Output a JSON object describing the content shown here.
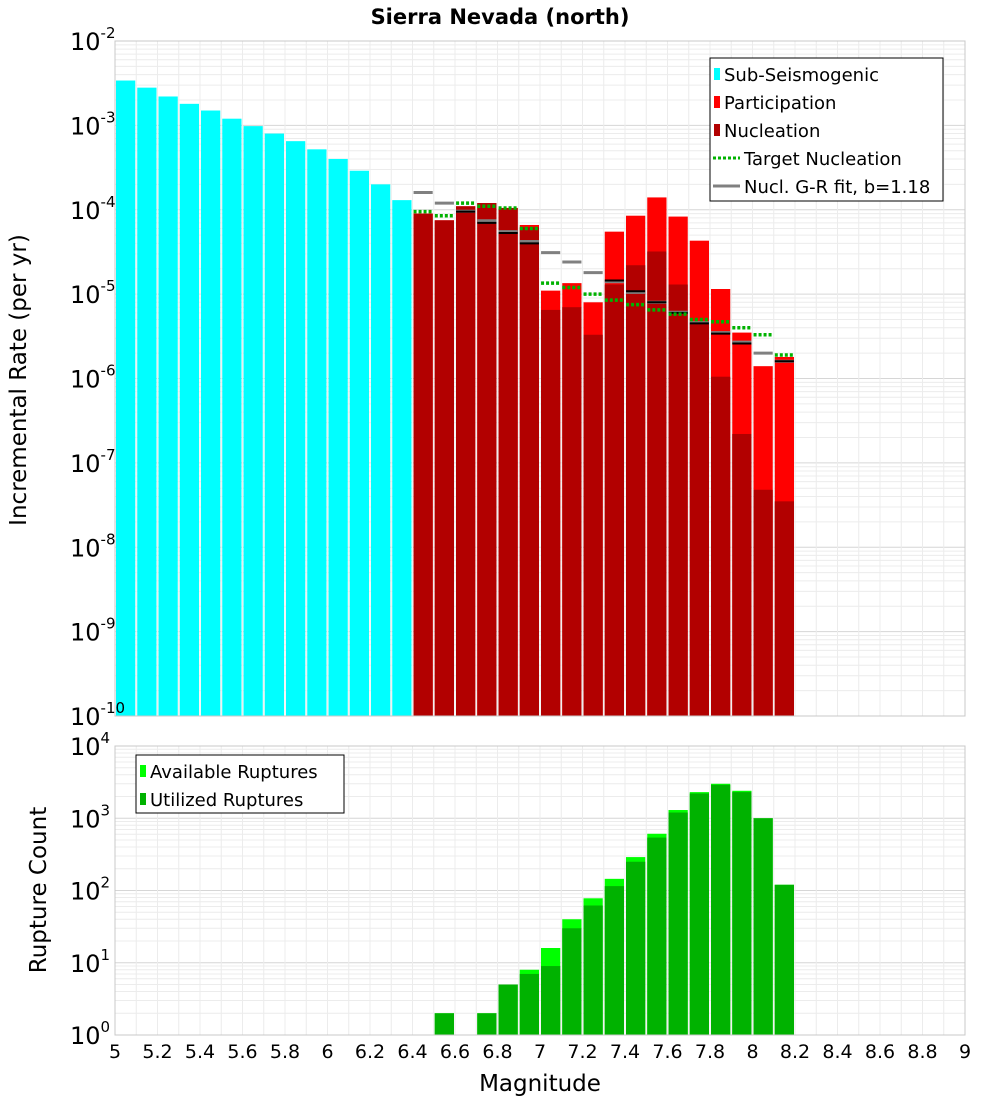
{
  "chart_data": [
    {
      "type": "bar",
      "title": "Sierra Nevada (north)",
      "ylabel": "Incremental Rate (per yr)",
      "xlabel": "",
      "y_scale": "log",
      "xlim": [
        5,
        9
      ],
      "ylim": [
        1e-10,
        0.01
      ],
      "y_ticks": [
        {
          "base": "10",
          "exp": "-10"
        },
        {
          "base": "10",
          "exp": "-9"
        },
        {
          "base": "10",
          "exp": "-8"
        },
        {
          "base": "10",
          "exp": "-7"
        },
        {
          "base": "10",
          "exp": "-6"
        },
        {
          "base": "10",
          "exp": "-5"
        },
        {
          "base": "10",
          "exp": "-4"
        },
        {
          "base": "10",
          "exp": "-3"
        },
        {
          "base": "10",
          "exp": "-2"
        }
      ],
      "grid": true,
      "legend_position": "top-right",
      "legend": [
        {
          "label": "Sub-Seismogenic",
          "color": "#00ffff",
          "style": "bar"
        },
        {
          "label": "Participation",
          "color": "#ff0000",
          "style": "bar"
        },
        {
          "label": "Nucleation",
          "color": "#b20000",
          "style": "bar"
        },
        {
          "label": "Target Nucleation",
          "color": "#00b200",
          "style": "dotted"
        },
        {
          "label": "Nucl. G-R fit, b=1.18",
          "color": "#808080",
          "style": "solid"
        }
      ],
      "series": [
        {
          "name": "Sub-Seismogenic",
          "color": "#00ffff",
          "x": [
            5.05,
            5.15,
            5.25,
            5.35,
            5.45,
            5.55,
            5.65,
            5.75,
            5.85,
            5.95,
            6.05,
            6.15,
            6.25,
            6.35
          ],
          "values": [
            0.0034,
            0.0028,
            0.0022,
            0.0018,
            0.0015,
            0.0012,
            0.00098,
            0.0008,
            0.00065,
            0.00052,
            0.0004,
            0.00029,
            0.0002,
            0.00013
          ]
        },
        {
          "name": "Participation",
          "color": "#ff0000",
          "x": [
            6.45,
            6.55,
            6.65,
            6.75,
            6.85,
            6.95,
            7.05,
            7.15,
            7.25,
            7.35,
            7.45,
            7.55,
            7.65,
            7.75,
            7.85,
            7.95,
            8.05,
            8.15
          ],
          "values": [
            9e-05,
            7.5e-05,
            0.00011,
            0.00012,
            0.000105,
            6.6e-05,
            1.1e-05,
            1.35e-05,
            8e-06,
            5.5e-05,
            8.5e-05,
            0.00014,
            8.3e-05,
            4.3e-05,
            1.15e-05,
            3.5e-06,
            1.4e-06,
            1.8e-06
          ]
        },
        {
          "name": "Nucleation",
          "color": "#b20000",
          "x": [
            6.45,
            6.55,
            6.65,
            6.75,
            6.85,
            6.95,
            7.05,
            7.15,
            7.25,
            7.35,
            7.45,
            7.55,
            7.65,
            7.75,
            7.85,
            7.95,
            8.05,
            8.15
          ],
          "values": [
            9e-05,
            7.5e-05,
            0.00011,
            0.00012,
            0.000105,
            6.2e-05,
            6.5e-06,
            7e-06,
            3.3e-06,
            1.3e-05,
            2.2e-05,
            3.2e-05,
            1.3e-05,
            4.5e-06,
            1.05e-06,
            2.2e-07,
            4.8e-08,
            3.5e-08
          ]
        },
        {
          "name": "Target Nucleation",
          "color": "#00b200",
          "x": [
            6.45,
            6.55,
            6.65,
            6.75,
            6.85,
            6.95,
            7.05,
            7.15,
            7.25,
            7.35,
            7.45,
            7.55,
            7.65,
            7.75,
            7.85,
            7.95,
            8.05,
            8.15
          ],
          "values": [
            9.5e-05,
            8.5e-05,
            0.00012,
            0.00011,
            0.000105,
            6e-05,
            1.35e-05,
            1.2e-05,
            1e-05,
            8.5e-06,
            7.5e-06,
            6.5e-06,
            5.8e-06,
            5e-06,
            4.7e-06,
            4e-06,
            3.3e-06,
            1.9e-06
          ]
        },
        {
          "name": "Nucleation mean",
          "color": "#000000",
          "x": [
            6.45,
            6.55,
            6.65,
            6.75,
            6.85,
            6.95,
            7.05,
            7.15,
            7.25,
            7.35,
            7.45,
            7.55,
            7.65,
            7.75,
            7.85,
            7.95,
            8.05,
            8.15
          ],
          "values": [
            null,
            null,
            9.5e-05,
            7e-05,
            5.3e-05,
            4e-05,
            null,
            null,
            null,
            1.45e-05,
            1.08e-05,
            8e-06,
            6e-06,
            4.5e-06,
            3.4e-06,
            2.6e-06,
            null,
            1.6e-06
          ]
        },
        {
          "name": "Nucl. G-R fit, b=1.18",
          "color": "#808080",
          "x": [
            6.45,
            6.55,
            6.65,
            6.75,
            6.85,
            6.95,
            7.05,
            7.15,
            7.25,
            7.35,
            7.45,
            7.55,
            7.65,
            7.75,
            7.85,
            7.95,
            8.05,
            8.15
          ],
          "values": [
            0.00016,
            0.00012,
            9.6e-05,
            7.4e-05,
            5.5e-05,
            4.2e-05,
            3.1e-05,
            2.4e-05,
            1.8e-05,
            1.4e-05,
            1.05e-05,
            8e-06,
            6.1e-06,
            4.6e-06,
            3.5e-06,
            2.7e-06,
            2e-06,
            1.6e-06
          ]
        }
      ]
    },
    {
      "type": "bar",
      "title": "",
      "ylabel": "Rupture Count",
      "xlabel": "Magnitude",
      "y_scale": "log",
      "xlim": [
        5,
        9
      ],
      "ylim": [
        1,
        10000
      ],
      "y_ticks": [
        {
          "base": "10",
          "exp": "0"
        },
        {
          "base": "10",
          "exp": "1"
        },
        {
          "base": "10",
          "exp": "2"
        },
        {
          "base": "10",
          "exp": "3"
        },
        {
          "base": "10",
          "exp": "4"
        }
      ],
      "x_ticks": [
        "5",
        "5.2",
        "5.4",
        "5.6",
        "5.8",
        "6",
        "6.2",
        "6.4",
        "6.6",
        "6.8",
        "7",
        "7.2",
        "7.4",
        "7.6",
        "7.8",
        "8",
        "8.2",
        "8.4",
        "8.6",
        "8.8",
        "9"
      ],
      "grid": true,
      "legend_position": "top-left",
      "legend": [
        {
          "label": "Available Ruptures",
          "color": "#00ff00",
          "style": "bar"
        },
        {
          "label": "Utilized Ruptures",
          "color": "#00b200",
          "style": "bar"
        }
      ],
      "series": [
        {
          "name": "Available Ruptures",
          "color": "#00ff00",
          "x": [
            6.55,
            6.75,
            6.85,
            6.95,
            7.05,
            7.15,
            7.25,
            7.35,
            7.45,
            7.55,
            7.65,
            7.75,
            7.85,
            7.95,
            8.05,
            8.15
          ],
          "values": [
            2,
            2,
            5,
            8,
            16,
            40,
            78,
            145,
            290,
            610,
            1300,
            2300,
            3000,
            2400,
            1000,
            120
          ]
        },
        {
          "name": "Utilized Ruptures",
          "color": "#00b200",
          "x": [
            6.55,
            6.75,
            6.85,
            6.95,
            7.05,
            7.15,
            7.25,
            7.35,
            7.45,
            7.55,
            7.65,
            7.75,
            7.85,
            7.95,
            8.05,
            8.15
          ],
          "values": [
            2,
            2,
            5,
            7,
            9,
            30,
            62,
            115,
            250,
            540,
            1200,
            2200,
            2900,
            2300,
            1000,
            120
          ]
        }
      ]
    }
  ]
}
